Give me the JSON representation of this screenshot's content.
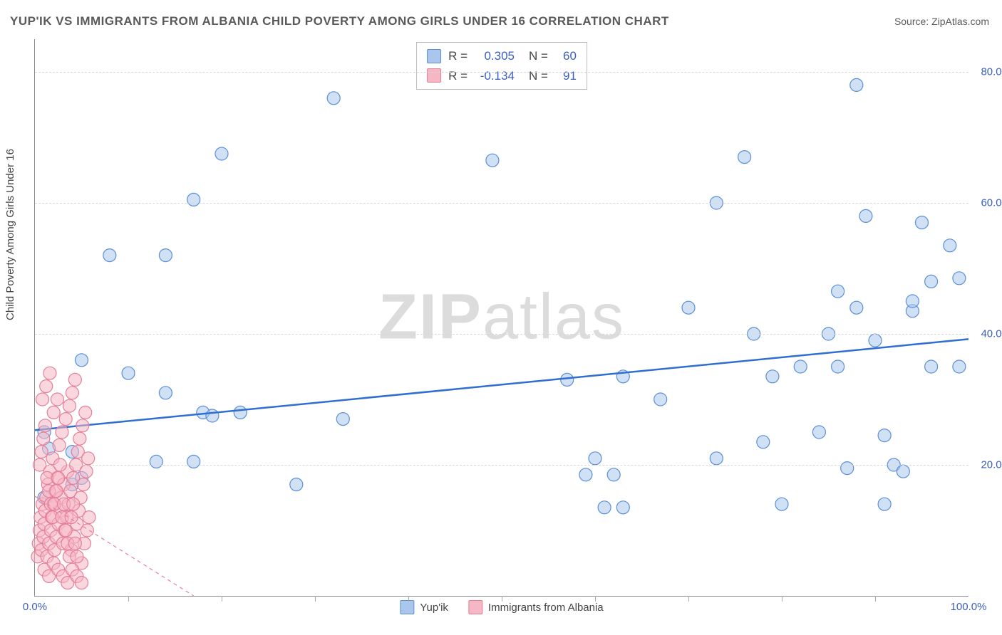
{
  "title": "YUP'IK VS IMMIGRANTS FROM ALBANIA CHILD POVERTY AMONG GIRLS UNDER 16 CORRELATION CHART",
  "source": "Source: ZipAtlas.com",
  "ylabel": "Child Poverty Among Girls Under 16",
  "watermark_a": "ZIP",
  "watermark_b": "atlas",
  "chart": {
    "type": "scatter",
    "background_color": "#ffffff",
    "grid_color": "#d8d8d8",
    "axis_color": "#888888",
    "text_color": "#5a5a5a",
    "tick_label_color": "#3b5fc0",
    "xlim": [
      0,
      100
    ],
    "ylim": [
      0,
      85
    ],
    "x_major_ticks": [
      0,
      100
    ],
    "x_major_labels": [
      "0.0%",
      "100.0%"
    ],
    "x_minor_step": 10,
    "y_ticks": [
      20,
      40,
      60,
      80
    ],
    "y_labels": [
      "20.0%",
      "40.0%",
      "60.0%",
      "80.0%"
    ],
    "marker_radius": 9,
    "marker_opacity": 0.55,
    "series": [
      {
        "name": "Yup'ik",
        "fill": "#a9c6ec",
        "stroke": "#5b8fd6",
        "R": "0.305",
        "N": "60",
        "trend": {
          "x1": 0,
          "y1": 25.3,
          "x2": 100,
          "y2": 39.2,
          "color": "#2f6fd0",
          "width": 2.5,
          "dash": "none"
        },
        "points": [
          [
            1,
            25
          ],
          [
            1.5,
            22.5
          ],
          [
            1,
            15
          ],
          [
            4,
            22
          ],
          [
            5,
            36
          ],
          [
            5,
            18
          ],
          [
            4,
            17
          ],
          [
            8,
            52
          ],
          [
            10,
            34
          ],
          [
            14,
            52
          ],
          [
            17,
            60.5
          ],
          [
            14,
            31
          ],
          [
            13,
            20.5
          ],
          [
            17,
            20.5
          ],
          [
            18,
            28
          ],
          [
            19,
            27.5
          ],
          [
            20,
            67.5
          ],
          [
            22,
            28
          ],
          [
            28,
            17
          ],
          [
            32,
            76
          ],
          [
            33,
            27
          ],
          [
            49,
            66.5
          ],
          [
            57,
            33
          ],
          [
            59,
            18.5
          ],
          [
            60,
            21
          ],
          [
            62,
            18.5
          ],
          [
            63,
            33.5
          ],
          [
            61,
            13.5
          ],
          [
            63,
            13.5
          ],
          [
            67,
            30
          ],
          [
            70,
            44
          ],
          [
            73,
            21
          ],
          [
            73,
            60
          ],
          [
            76,
            67
          ],
          [
            77,
            40
          ],
          [
            79,
            33.5
          ],
          [
            78,
            23.5
          ],
          [
            80,
            14
          ],
          [
            82,
            35
          ],
          [
            84,
            25
          ],
          [
            85,
            40
          ],
          [
            86,
            46.5
          ],
          [
            86,
            35
          ],
          [
            87,
            19.5
          ],
          [
            88,
            78
          ],
          [
            89,
            58
          ],
          [
            90,
            39
          ],
          [
            91,
            24.5
          ],
          [
            91,
            14
          ],
          [
            92,
            20
          ],
          [
            93,
            19
          ],
          [
            94,
            43.5
          ],
          [
            94,
            45
          ],
          [
            95,
            57
          ],
          [
            96,
            48
          ],
          [
            96,
            35
          ],
          [
            98,
            53.5
          ],
          [
            99,
            35
          ],
          [
            99,
            48.5
          ],
          [
            88,
            44
          ]
        ]
      },
      {
        "name": "Immigrants from Albania",
        "fill": "#f6b7c4",
        "stroke": "#e57f98",
        "R": "-0.134",
        "N": "91",
        "trend": {
          "x1": 0,
          "y1": 15.2,
          "x2": 17,
          "y2": 0,
          "color": "#e57f98",
          "width": 1.2,
          "dash": "5,5"
        },
        "points": [
          [
            0.3,
            6
          ],
          [
            0.4,
            8
          ],
          [
            0.5,
            10
          ],
          [
            0.6,
            12
          ],
          [
            0.7,
            7
          ],
          [
            0.8,
            14
          ],
          [
            0.9,
            9
          ],
          [
            1.0,
            11
          ],
          [
            1.1,
            13
          ],
          [
            1.2,
            15
          ],
          [
            1.3,
            6
          ],
          [
            1.4,
            17
          ],
          [
            1.5,
            8
          ],
          [
            1.6,
            19
          ],
          [
            1.7,
            10
          ],
          [
            1.8,
            12
          ],
          [
            1.9,
            21
          ],
          [
            2.0,
            14
          ],
          [
            2.1,
            7
          ],
          [
            2.2,
            16
          ],
          [
            2.3,
            9
          ],
          [
            2.4,
            18
          ],
          [
            2.5,
            11
          ],
          [
            2.6,
            23
          ],
          [
            2.7,
            13
          ],
          [
            2.8,
            15
          ],
          [
            2.9,
            25
          ],
          [
            3.0,
            8
          ],
          [
            3.1,
            17
          ],
          [
            3.2,
            10
          ],
          [
            3.3,
            27
          ],
          [
            3.4,
            12
          ],
          [
            3.5,
            19
          ],
          [
            3.6,
            14
          ],
          [
            3.7,
            29
          ],
          [
            3.8,
            16
          ],
          [
            3.9,
            7
          ],
          [
            4.0,
            31
          ],
          [
            4.1,
            18
          ],
          [
            4.2,
            9
          ],
          [
            4.3,
            33
          ],
          [
            4.4,
            20
          ],
          [
            4.5,
            11
          ],
          [
            4.6,
            22
          ],
          [
            4.7,
            13
          ],
          [
            4.8,
            24
          ],
          [
            4.9,
            15
          ],
          [
            5.0,
            5
          ],
          [
            5.1,
            26
          ],
          [
            5.2,
            17
          ],
          [
            5.3,
            8
          ],
          [
            5.4,
            28
          ],
          [
            5.5,
            19
          ],
          [
            5.6,
            10
          ],
          [
            5.7,
            21
          ],
          [
            5.8,
            12
          ],
          [
            1.0,
            4
          ],
          [
            1.5,
            3
          ],
          [
            2.0,
            5
          ],
          [
            2.5,
            4
          ],
          [
            3.0,
            3
          ],
          [
            3.5,
            2
          ],
          [
            4.0,
            4
          ],
          [
            4.5,
            3
          ],
          [
            5.0,
            2
          ],
          [
            0.8,
            30
          ],
          [
            1.2,
            32
          ],
          [
            1.6,
            34
          ],
          [
            2.0,
            28
          ],
          [
            2.4,
            30
          ],
          [
            0.5,
            20
          ],
          [
            0.7,
            22
          ],
          [
            0.9,
            24
          ],
          [
            1.1,
            26
          ],
          [
            1.3,
            18
          ],
          [
            1.5,
            16
          ],
          [
            1.7,
            14
          ],
          [
            1.9,
            12
          ],
          [
            2.1,
            14
          ],
          [
            2.3,
            16
          ],
          [
            2.5,
            18
          ],
          [
            2.7,
            20
          ],
          [
            2.9,
            12
          ],
          [
            3.1,
            14
          ],
          [
            3.3,
            10
          ],
          [
            3.5,
            8
          ],
          [
            3.7,
            6
          ],
          [
            3.9,
            12
          ],
          [
            4.1,
            14
          ],
          [
            4.3,
            8
          ],
          [
            4.5,
            6
          ]
        ]
      }
    ]
  },
  "legend_bottom": [
    {
      "label": "Yup'ik",
      "fill": "#a9c6ec",
      "stroke": "#5b8fd6"
    },
    {
      "label": "Immigrants from Albania",
      "fill": "#f6b7c4",
      "stroke": "#e57f98"
    }
  ]
}
